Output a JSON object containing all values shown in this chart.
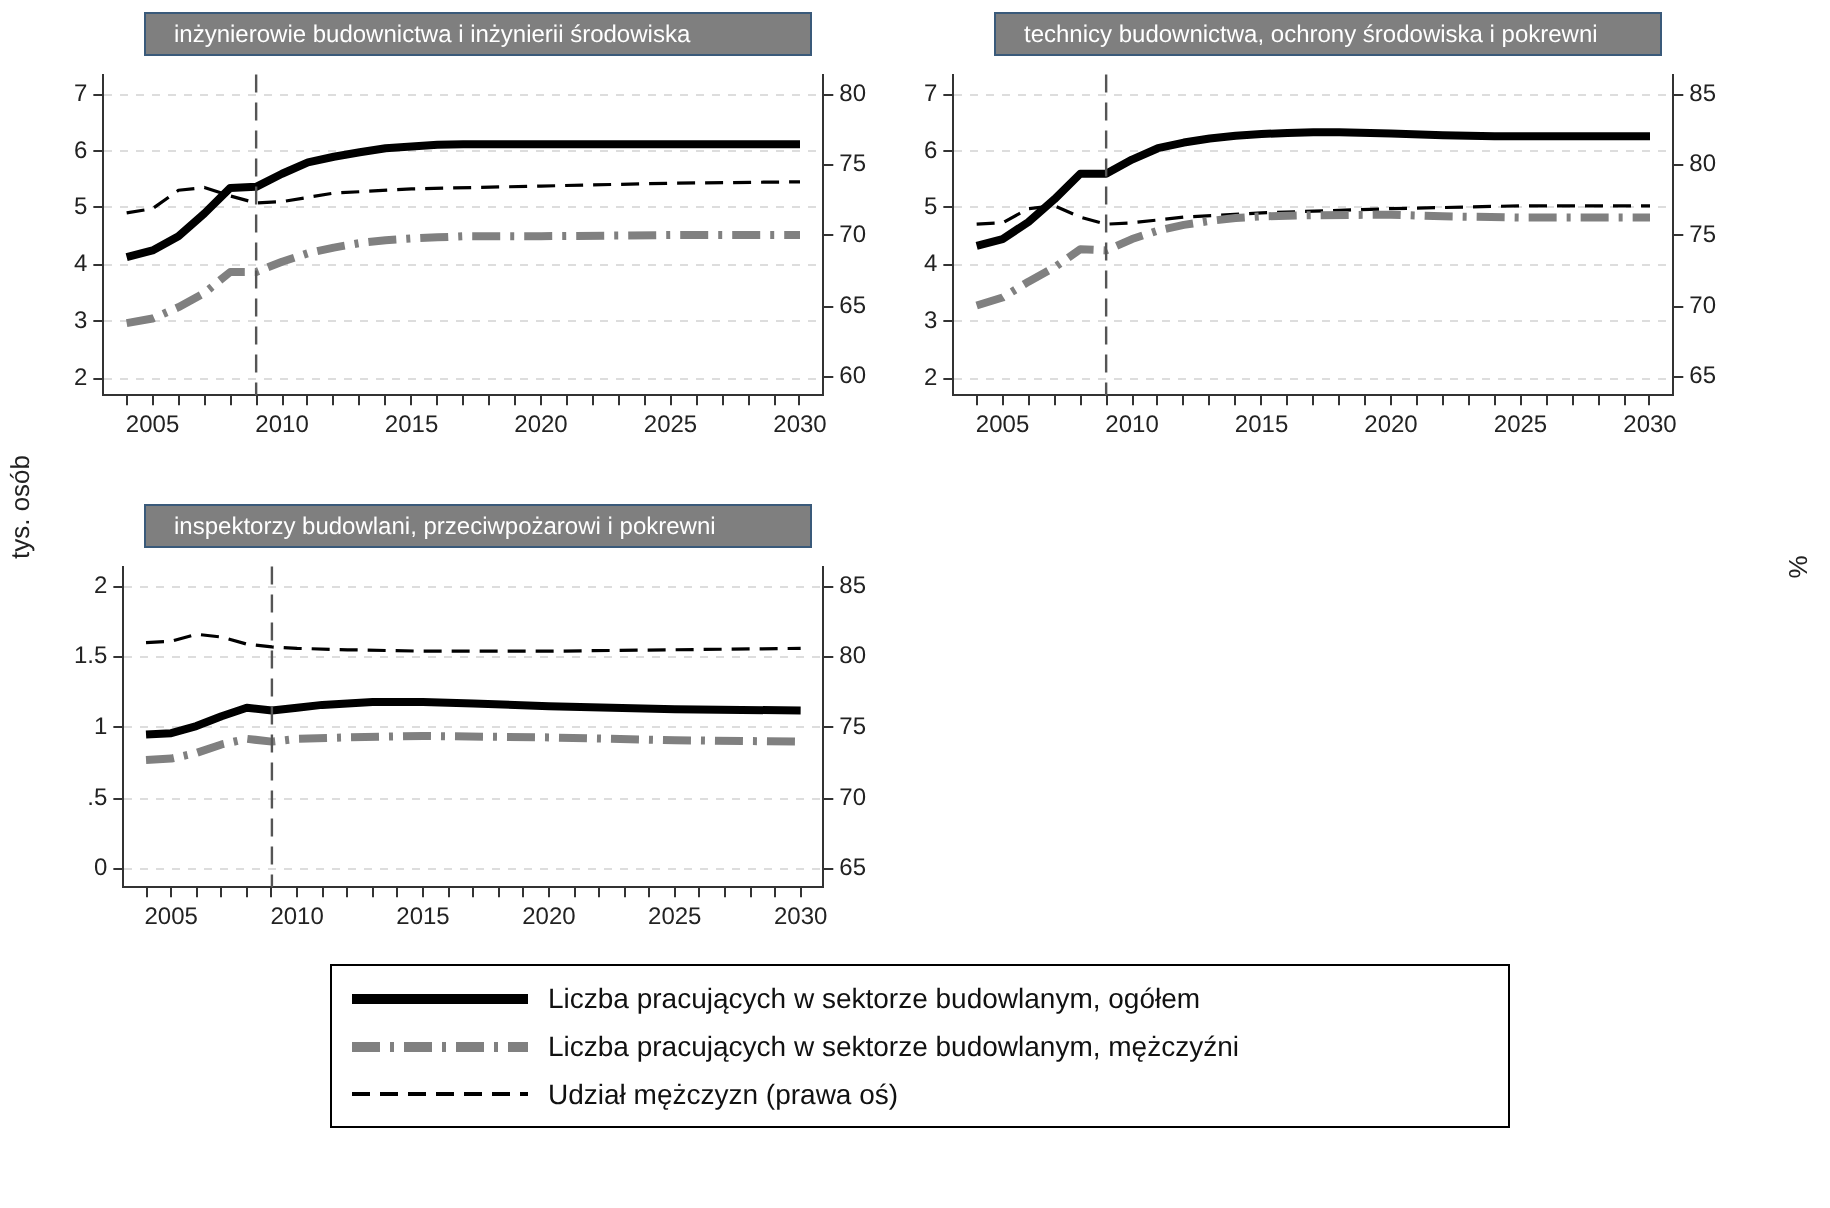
{
  "chart_data": [
    {
      "type": "line",
      "title": "inżynierowie budownictwa i inżynierii środowiska",
      "ylabel": "tys. osób",
      "legend": "bottom",
      "grid": "y",
      "xlim": [
        2003.1,
        2030.9
      ],
      "xticks": [
        2005,
        2010,
        2015,
        2020,
        2025,
        2030,
        {
          "value": 2004,
          "label": null
        },
        {
          "value": 2006,
          "label": null
        },
        {
          "value": 2007,
          "label": null
        },
        {
          "value": 2008,
          "label": null
        },
        {
          "value": 2009,
          "label": null
        },
        {
          "value": 2011,
          "label": null
        },
        {
          "value": 2012,
          "label": null
        },
        {
          "value": 2013,
          "label": null
        },
        {
          "value": 2014,
          "label": null
        },
        {
          "value": 2016,
          "label": null
        },
        {
          "value": 2017,
          "label": null
        },
        {
          "value": 2018,
          "label": null
        },
        {
          "value": 2019,
          "label": null
        },
        {
          "value": 2021,
          "label": null
        },
        {
          "value": 2022,
          "label": null
        },
        {
          "value": 2023,
          "label": null
        },
        {
          "value": 2024,
          "label": null
        },
        {
          "value": 2026,
          "label": null
        },
        {
          "value": 2027,
          "label": null
        },
        {
          "value": 2028,
          "label": null
        },
        {
          "value": 2029,
          "label": null
        }
      ],
      "ylim": [
        1.7,
        7.35
      ],
      "yticks": [
        2,
        3,
        4,
        5,
        6,
        7
      ],
      "y2lim": [
        58.7,
        81.4
      ],
      "y2ticks": [
        60,
        65,
        70,
        75,
        80
      ],
      "ref_lines": [
        {
          "axis": "x",
          "value": 2009,
          "color": "#555555",
          "line_style": "dashed"
        }
      ],
      "series": [
        {
          "name": "Liczba pracujących w sektorze budowlanym, ogółem",
          "color": "#000000",
          "line_style": "solid",
          "x": [
            2004,
            2005,
            2006,
            2007,
            2008,
            2009,
            2010,
            2011,
            2012,
            2013,
            2014,
            2015,
            2016,
            2017,
            2020,
            2025,
            2030
          ],
          "values": [
            4.13,
            4.25,
            4.5,
            4.9,
            5.35,
            5.37,
            5.6,
            5.8,
            5.9,
            5.98,
            6.05,
            6.08,
            6.11,
            6.12,
            6.12,
            6.12,
            6.12
          ]
        },
        {
          "name": "Liczba pracujących w sektorze budowlanym, mężczyźni",
          "color": "#808080",
          "line_style": "dashdot",
          "x": [
            2004,
            2005,
            2006,
            2007,
            2008,
            2009,
            2010,
            2011,
            2012,
            2013,
            2014,
            2015,
            2016,
            2017,
            2018,
            2020,
            2025,
            2030
          ],
          "values": [
            2.97,
            3.05,
            3.25,
            3.5,
            3.87,
            3.87,
            4.05,
            4.2,
            4.3,
            4.38,
            4.43,
            4.46,
            4.48,
            4.5,
            4.5,
            4.5,
            4.52,
            4.52
          ]
        },
        {
          "name": "Udział mężczyzn (prawa oś)",
          "color": "#000000",
          "line_style": "dashed",
          "axis": "y2",
          "x": [
            2004,
            2005,
            2006,
            2007,
            2008,
            2009,
            2010,
            2012,
            2015,
            2020,
            2025,
            2030
          ],
          "values": [
            71.6,
            71.9,
            73.2,
            73.4,
            72.8,
            72.3,
            72.4,
            73.0,
            73.3,
            73.5,
            73.7,
            73.8
          ]
        }
      ]
    },
    {
      "type": "line",
      "title": "technicy budownictwa, ochrony środowiska i pokrewni",
      "y2label": "%",
      "grid": "y",
      "xlim": [
        2003.1,
        2030.9
      ],
      "xticks": [
        2005,
        2010,
        2015,
        2020,
        2025,
        2030,
        {
          "value": 2004,
          "label": null
        },
        {
          "value": 2006,
          "label": null
        },
        {
          "value": 2007,
          "label": null
        },
        {
          "value": 2008,
          "label": null
        },
        {
          "value": 2009,
          "label": null
        },
        {
          "value": 2011,
          "label": null
        },
        {
          "value": 2012,
          "label": null
        },
        {
          "value": 2013,
          "label": null
        },
        {
          "value": 2014,
          "label": null
        },
        {
          "value": 2016,
          "label": null
        },
        {
          "value": 2017,
          "label": null
        },
        {
          "value": 2018,
          "label": null
        },
        {
          "value": 2019,
          "label": null
        },
        {
          "value": 2021,
          "label": null
        },
        {
          "value": 2022,
          "label": null
        },
        {
          "value": 2023,
          "label": null
        },
        {
          "value": 2024,
          "label": null
        },
        {
          "value": 2026,
          "label": null
        },
        {
          "value": 2027,
          "label": null
        },
        {
          "value": 2028,
          "label": null
        },
        {
          "value": 2029,
          "label": null
        }
      ],
      "ylim": [
        1.7,
        7.35
      ],
      "yticks": [
        2,
        3,
        4,
        5,
        6,
        7
      ],
      "y2lim": [
        63.7,
        86.4
      ],
      "y2ticks": [
        65,
        70,
        75,
        80,
        85
      ],
      "ref_lines": [
        {
          "axis": "x",
          "value": 2009,
          "color": "#555555",
          "line_style": "dashed"
        }
      ],
      "series": [
        {
          "color": "#000000",
          "line_style": "solid",
          "x": [
            2004,
            2005,
            2006,
            2007,
            2008,
            2009,
            2010,
            2011,
            2012,
            2013,
            2014,
            2015,
            2016,
            2017,
            2018,
            2020,
            2022,
            2024,
            2030
          ],
          "values": [
            4.33,
            4.45,
            4.75,
            5.15,
            5.6,
            5.6,
            5.85,
            6.05,
            6.15,
            6.22,
            6.27,
            6.3,
            6.32,
            6.33,
            6.33,
            6.31,
            6.28,
            6.26,
            6.26
          ]
        },
        {
          "color": "#808080",
          "line_style": "dashdot",
          "x": [
            2004,
            2005,
            2006,
            2007,
            2008,
            2009,
            2010,
            2011,
            2012,
            2013,
            2014,
            2015,
            2017,
            2020,
            2022,
            2025,
            2030
          ],
          "values": [
            3.28,
            3.42,
            3.7,
            3.95,
            4.27,
            4.25,
            4.45,
            4.6,
            4.7,
            4.77,
            4.82,
            4.85,
            4.87,
            4.88,
            4.85,
            4.83,
            4.83
          ]
        },
        {
          "color": "#000000",
          "line_style": "dashed",
          "axis": "y2",
          "x": [
            2004,
            2005,
            2006,
            2007,
            2008,
            2009,
            2010,
            2012,
            2015,
            2020,
            2025,
            2030
          ],
          "values": [
            75.8,
            75.9,
            76.9,
            77.1,
            76.3,
            75.8,
            75.9,
            76.3,
            76.6,
            76.9,
            77.1,
            77.1
          ]
        }
      ]
    },
    {
      "type": "line",
      "title": "inspektorzy budowlani, przeciwpożarowi i pokrewni",
      "grid": "y",
      "xlim": [
        2003.1,
        2030.9
      ],
      "xticks": [
        2005,
        2010,
        2015,
        2020,
        2025,
        2030,
        {
          "value": 2004,
          "label": null
        },
        {
          "value": 2006,
          "label": null
        },
        {
          "value": 2007,
          "label": null
        },
        {
          "value": 2008,
          "label": null
        },
        {
          "value": 2009,
          "label": null
        },
        {
          "value": 2011,
          "label": null
        },
        {
          "value": 2012,
          "label": null
        },
        {
          "value": 2013,
          "label": null
        },
        {
          "value": 2014,
          "label": null
        },
        {
          "value": 2016,
          "label": null
        },
        {
          "value": 2017,
          "label": null
        },
        {
          "value": 2018,
          "label": null
        },
        {
          "value": 2019,
          "label": null
        },
        {
          "value": 2021,
          "label": null
        },
        {
          "value": 2022,
          "label": null
        },
        {
          "value": 2023,
          "label": null
        },
        {
          "value": 2024,
          "label": null
        },
        {
          "value": 2026,
          "label": null
        },
        {
          "value": 2027,
          "label": null
        },
        {
          "value": 2028,
          "label": null
        },
        {
          "value": 2029,
          "label": null
        }
      ],
      "ylim": [
        -0.13,
        2.14
      ],
      "yticks": [
        0,
        {
          "value": 0.5,
          "label": ".5"
        },
        1,
        1.5,
        2
      ],
      "y2lim": [
        63.7,
        86.4
      ],
      "y2ticks": [
        65,
        70,
        75,
        80,
        85
      ],
      "ref_lines": [
        {
          "axis": "x",
          "value": 2009,
          "color": "#555555",
          "line_style": "dashed"
        }
      ],
      "series": [
        {
          "color": "#000000",
          "line_style": "solid",
          "x": [
            2004,
            2005,
            2006,
            2007,
            2008,
            2009,
            2010,
            2011,
            2012,
            2013,
            2015,
            2017,
            2020,
            2025,
            2030
          ],
          "values": [
            0.95,
            0.96,
            1.01,
            1.08,
            1.14,
            1.12,
            1.14,
            1.16,
            1.17,
            1.18,
            1.18,
            1.17,
            1.15,
            1.13,
            1.12
          ]
        },
        {
          "color": "#808080",
          "line_style": "dashdot",
          "x": [
            2004,
            2005,
            2006,
            2007,
            2008,
            2009,
            2010,
            2012,
            2015,
            2020,
            2025,
            2030
          ],
          "values": [
            0.77,
            0.78,
            0.82,
            0.88,
            0.92,
            0.9,
            0.92,
            0.93,
            0.94,
            0.93,
            0.91,
            0.9
          ]
        },
        {
          "color": "#000000",
          "line_style": "dashed",
          "axis": "y2",
          "x": [
            2004,
            2005,
            2006,
            2007,
            2008,
            2009,
            2010,
            2012,
            2015,
            2020,
            2025,
            2030
          ],
          "values": [
            81.0,
            81.1,
            81.6,
            81.4,
            80.9,
            80.7,
            80.6,
            80.5,
            80.4,
            80.4,
            80.5,
            80.6
          ]
        }
      ]
    }
  ]
}
